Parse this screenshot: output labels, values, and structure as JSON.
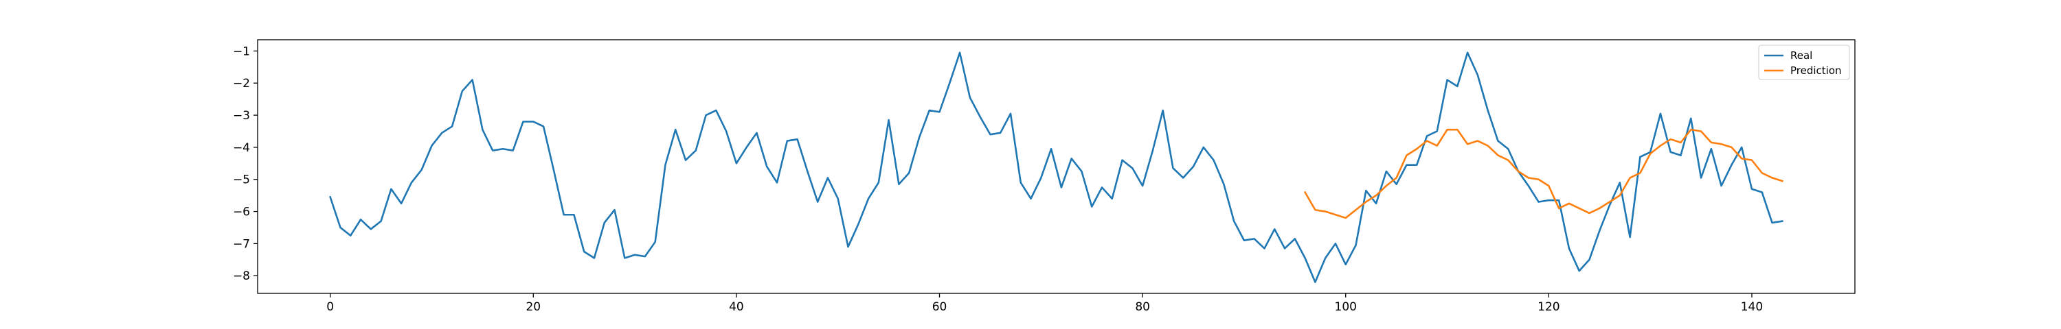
{
  "chart_data": {
    "type": "line",
    "title": "",
    "xlabel": "",
    "ylabel": "",
    "xlim": [
      -7.15,
      150.15
    ],
    "ylim": [
      -8.55,
      -0.65
    ],
    "xticks": [
      0,
      20,
      40,
      60,
      80,
      100,
      120,
      140
    ],
    "yticks": [
      -8,
      -7,
      -6,
      -5,
      -4,
      -3,
      -2,
      -1
    ],
    "xtick_labels": [
      "0",
      "20",
      "40",
      "60",
      "80",
      "100",
      "120",
      "140"
    ],
    "ytick_labels": [
      "−8",
      "−7",
      "−6",
      "−5",
      "−4",
      "−3",
      "−2",
      "−1"
    ],
    "grid": false,
    "legend_position": "top-right",
    "series": [
      {
        "name": "Real",
        "color": "#1f77b4",
        "x_start": 0,
        "values": [
          -5.55,
          -6.5,
          -6.75,
          -6.25,
          -6.55,
          -6.3,
          -5.3,
          -5.75,
          -5.1,
          -4.7,
          -3.95,
          -3.55,
          -3.35,
          -2.25,
          -1.9,
          -3.45,
          -4.1,
          -4.05,
          -4.1,
          -3.2,
          -3.2,
          -3.35,
          -4.7,
          -6.1,
          -6.1,
          -7.25,
          -7.45,
          -6.35,
          -5.95,
          -7.45,
          -7.35,
          -7.4,
          -6.95,
          -4.55,
          -3.45,
          -4.4,
          -4.1,
          -3.0,
          -2.85,
          -3.5,
          -4.5,
          -4.0,
          -3.55,
          -4.6,
          -5.1,
          -3.8,
          -3.75,
          -4.75,
          -5.7,
          -4.95,
          -5.6,
          -7.1,
          -6.4,
          -5.6,
          -5.1,
          -3.15,
          -5.15,
          -4.8,
          -3.7,
          -2.85,
          -2.9,
          -2.0,
          -1.05,
          -2.45,
          -3.05,
          -3.6,
          -3.55,
          -2.95,
          -5.1,
          -5.6,
          -4.95,
          -4.05,
          -5.25,
          -4.35,
          -4.75,
          -5.85,
          -5.25,
          -5.6,
          -4.4,
          -4.65,
          -5.2,
          -4.1,
          -2.85,
          -4.65,
          -4.95,
          -4.6,
          -4.0,
          -4.4,
          -5.15,
          -6.3,
          -6.9,
          -6.85,
          -7.15,
          -6.55,
          -7.15,
          -6.85,
          -7.45,
          -8.2,
          -7.45,
          -7.0,
          -7.65,
          -7.05,
          -5.35,
          -5.75,
          -4.75,
          -5.15,
          -4.55,
          -4.55,
          -3.65,
          -3.5,
          -1.9,
          -2.1,
          -1.05,
          -1.75,
          -2.85,
          -3.8,
          -4.05,
          -4.75,
          -5.2,
          -5.7,
          -5.65,
          -5.65,
          -7.15,
          -7.85,
          -7.5,
          -6.6,
          -5.8,
          -5.1,
          -6.8,
          -4.3,
          -4.15,
          -2.95,
          -4.15,
          -4.25,
          -3.1,
          -4.95,
          -4.05,
          -5.2,
          -4.55,
          -4.0,
          -5.3,
          -5.4,
          -6.35,
          -6.3
        ]
      },
      {
        "name": "Prediction",
        "color": "#ff7f0e",
        "x_start": 96,
        "values": [
          -5.4,
          -5.95,
          -6.0,
          -6.1,
          -6.2,
          -5.95,
          -5.7,
          -5.5,
          -5.2,
          -4.95,
          -4.25,
          -4.05,
          -3.8,
          -3.95,
          -3.45,
          -3.45,
          -3.9,
          -3.8,
          -3.95,
          -4.25,
          -4.4,
          -4.75,
          -4.95,
          -5.0,
          -5.2,
          -5.9,
          -5.75,
          -5.9,
          -6.05,
          -5.9,
          -5.7,
          -5.5,
          -4.95,
          -4.8,
          -4.2,
          -3.95,
          -3.75,
          -3.85,
          -3.45,
          -3.5,
          -3.85,
          -3.9,
          -4.0,
          -4.35,
          -4.4,
          -4.8,
          -4.95,
          -5.05
        ]
      }
    ]
  }
}
